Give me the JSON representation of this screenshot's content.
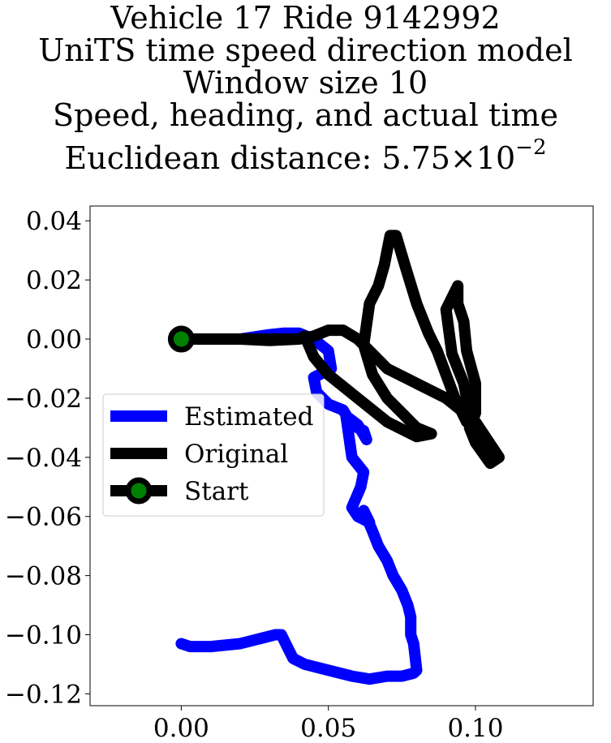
{
  "chart_data": {
    "type": "line",
    "title": {
      "line1": "Vehicle 17 Ride 9142992",
      "line2": "UniTS time speed direction model",
      "line3": "Window size 10",
      "line4": "Speed, heading, and actual time",
      "line5_prefix": "Euclidean distance: 5.75",
      "line5_times": "×",
      "line5_base": "10",
      "line5_exp": "−2"
    },
    "xlabel": "",
    "ylabel": "",
    "xlim": [
      -0.031,
      0.14
    ],
    "ylim": [
      -0.124,
      0.045
    ],
    "x_ticks": [
      {
        "value": 0.0,
        "label": "0.00"
      },
      {
        "value": 0.05,
        "label": "0.05"
      },
      {
        "value": 0.1,
        "label": "0.10"
      }
    ],
    "y_ticks": [
      {
        "value": 0.04,
        "label": "0.04"
      },
      {
        "value": 0.02,
        "label": "0.02"
      },
      {
        "value": 0.0,
        "label": "0.00"
      },
      {
        "value": -0.02,
        "label": "−0.02"
      },
      {
        "value": -0.04,
        "label": "−0.04"
      },
      {
        "value": -0.06,
        "label": "−0.06"
      },
      {
        "value": -0.08,
        "label": "−0.08"
      },
      {
        "value": -0.1,
        "label": "−0.10"
      },
      {
        "value": -0.12,
        "label": "−0.12"
      }
    ],
    "grid": false,
    "legend_position": "center-left",
    "legend": [
      {
        "label": "Estimated",
        "color": "#0000ff"
      },
      {
        "label": "Original",
        "color": "#000000"
      },
      {
        "label": "Start",
        "color": "#000000",
        "marker_color": "#008000"
      }
    ],
    "series": [
      {
        "name": "Estimated",
        "color": "#0000ff",
        "x": [
          0.0,
          0.01,
          0.02,
          0.03,
          0.035,
          0.04,
          0.045,
          0.05,
          0.051,
          0.045,
          0.046,
          0.05,
          0.055,
          0.058,
          0.062,
          0.063,
          0.06,
          0.056,
          0.058,
          0.062,
          0.061,
          0.058,
          0.06,
          0.064,
          0.062,
          0.065,
          0.067,
          0.07,
          0.072,
          0.075,
          0.077,
          0.078,
          0.078,
          0.079,
          0.08,
          0.079,
          0.075,
          0.07,
          0.064,
          0.058,
          0.05,
          0.042,
          0.038,
          0.036,
          0.034,
          0.032,
          0.028,
          0.02,
          0.01,
          0.003,
          0.0
        ],
        "y": [
          0.0,
          0.0,
          0.0,
          0.0015,
          0.002,
          0.002,
          0.0,
          -0.004,
          -0.01,
          -0.013,
          -0.018,
          -0.022,
          -0.024,
          -0.029,
          -0.031,
          -0.034,
          -0.029,
          -0.026,
          -0.04,
          -0.045,
          -0.05,
          -0.057,
          -0.06,
          -0.062,
          -0.058,
          -0.065,
          -0.07,
          -0.075,
          -0.08,
          -0.085,
          -0.09,
          -0.094,
          -0.1,
          -0.103,
          -0.112,
          -0.113,
          -0.114,
          -0.114,
          -0.115,
          -0.114,
          -0.112,
          -0.11,
          -0.108,
          -0.104,
          -0.1,
          -0.1,
          -0.101,
          -0.103,
          -0.104,
          -0.104,
          -0.103
        ]
      },
      {
        "name": "Original",
        "color": "#000000",
        "x": [
          0.0,
          0.01,
          0.02,
          0.03,
          0.04,
          0.045,
          0.05,
          0.055,
          0.06,
          0.065,
          0.07,
          0.08,
          0.09,
          0.1,
          0.108,
          0.105,
          0.1,
          0.098,
          0.1,
          0.1,
          0.097,
          0.096,
          0.094,
          0.094,
          0.09,
          0.092,
          0.096,
          0.098,
          0.1,
          0.1,
          0.097,
          0.093,
          0.09,
          0.087,
          0.084,
          0.08,
          0.076,
          0.073,
          0.071,
          0.069,
          0.067,
          0.064,
          0.062,
          0.065,
          0.07,
          0.075,
          0.08,
          0.085,
          0.08,
          0.07,
          0.06,
          0.05,
          0.045,
          0.042,
          0.04,
          0.035,
          0.02,
          0.01,
          0.0
        ],
        "y": [
          0.0,
          0.0,
          0.0,
          -0.0005,
          0.0,
          0.001,
          0.003,
          0.003,
          0.0,
          -0.005,
          -0.01,
          -0.015,
          -0.02,
          -0.028,
          -0.04,
          -0.042,
          -0.035,
          -0.03,
          -0.025,
          -0.015,
          -0.004,
          0.006,
          0.012,
          0.018,
          0.01,
          -0.005,
          -0.015,
          -0.025,
          -0.03,
          -0.03,
          -0.028,
          -0.02,
          -0.012,
          -0.004,
          0.002,
          0.012,
          0.025,
          0.035,
          0.035,
          0.025,
          0.018,
          0.012,
          -0.002,
          -0.012,
          -0.02,
          -0.025,
          -0.03,
          -0.032,
          -0.033,
          -0.028,
          -0.02,
          -0.012,
          -0.006,
          0.001,
          0.0,
          0.0,
          0.0,
          0.0,
          0.0
        ]
      }
    ],
    "start_point": {
      "x": 0.0,
      "y": 0.0,
      "label": "Start",
      "color": "#008000"
    }
  }
}
